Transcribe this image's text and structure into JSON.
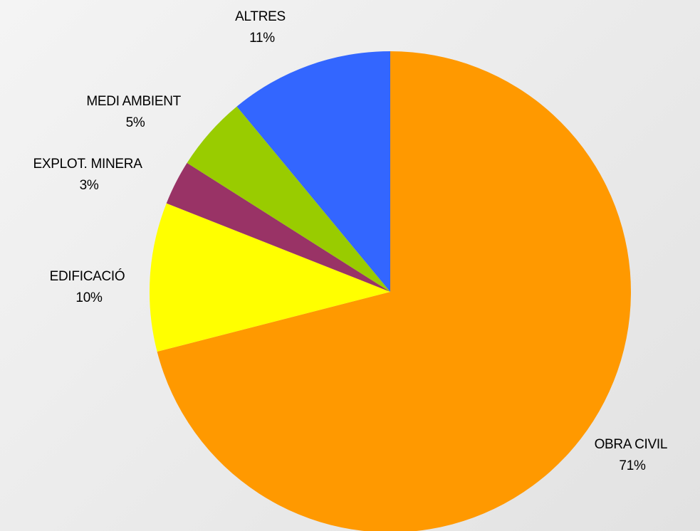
{
  "chart_data": {
    "type": "pie",
    "start_angle_deg": 0,
    "direction": "clockwise",
    "slices": [
      {
        "label": "OBRA CIVIL",
        "pct_label": "71%",
        "value": 71,
        "color": "#FF9900"
      },
      {
        "label": "EDIFICACIÓ",
        "pct_label": "10%",
        "value": 10,
        "color": "#FFFF00"
      },
      {
        "label": "EXPLOT. MINERA",
        "pct_label": "3%",
        "value": 3,
        "color": "#993366"
      },
      {
        "label": "MEDI AMBIENT",
        "pct_label": "5%",
        "value": 5,
        "color": "#99CC00"
      },
      {
        "label": "ALTRES",
        "pct_label": "11%",
        "value": 11,
        "color": "#3366FF"
      }
    ],
    "legend": "none",
    "data_labels": "outside"
  }
}
